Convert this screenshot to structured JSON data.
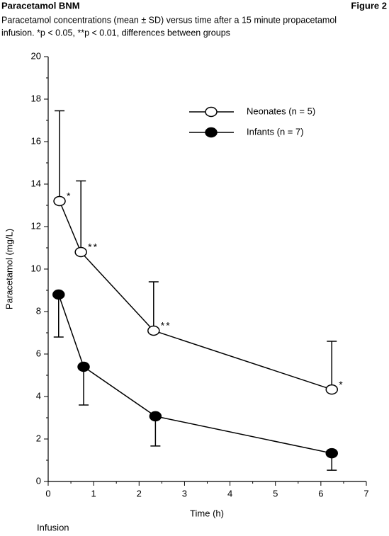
{
  "chart_data": {
    "type": "line",
    "header": "Paracetamol BNM",
    "figure_label": "Figure 2",
    "caption_lines": [
      "Paracetamol concentrations (mean ± SD) versus time after a 15 minute propacetamol",
      "infusion. *p < 0.05, **p < 0.01, differences between groups"
    ],
    "xlabel": "Time (h)",
    "ylabel": "Paracetamol (mg/L)",
    "note": "Infusion",
    "xlim": [
      0,
      7
    ],
    "xticks": [
      0,
      1,
      2,
      3,
      4,
      5,
      6,
      7
    ],
    "xticks_minor": [
      0.5,
      1.5,
      2.5,
      3.5,
      4.5,
      5.5,
      6.5
    ],
    "ylim": [
      0,
      20
    ],
    "yticks": [
      0,
      2,
      4,
      6,
      8,
      10,
      12,
      14,
      16,
      18,
      20
    ],
    "yticks_minor": [
      1,
      3,
      5,
      7,
      9,
      11,
      13,
      15,
      17,
      19
    ],
    "legend_position": "upper right",
    "series": [
      {
        "name": "Neonates (n = 5)",
        "color": "#000000",
        "marker_fill": "#ffffff",
        "error_direction": "up",
        "x": [
          0.25,
          0.72,
          2.32,
          6.24
        ],
        "values": [
          13.2,
          10.8,
          7.1,
          4.33
        ],
        "errors": [
          4.25,
          3.35,
          2.3,
          2.27
        ],
        "annotations": [
          "*",
          "**",
          "**",
          "*"
        ]
      },
      {
        "name": "Infants (n = 7)",
        "color": "#000000",
        "marker_fill": "#000000",
        "error_direction": "down",
        "x": [
          0.23,
          0.78,
          2.36,
          6.24
        ],
        "values": [
          8.8,
          5.4,
          3.07,
          1.33
        ],
        "errors": [
          2.0,
          1.8,
          1.4,
          0.8
        ]
      }
    ]
  }
}
